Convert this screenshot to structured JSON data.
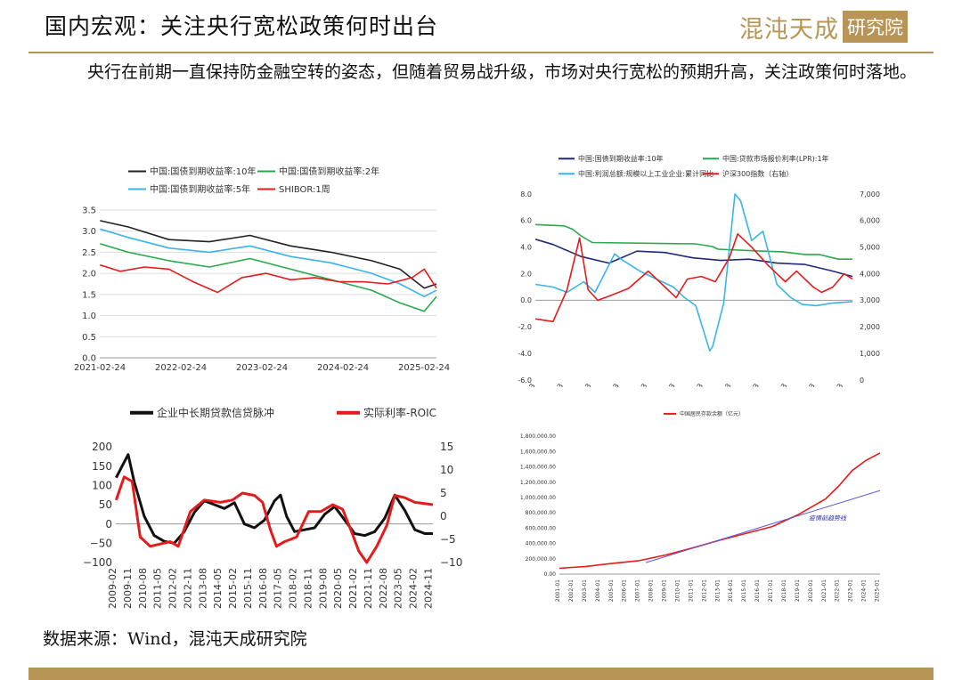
{
  "page": {
    "title": "国内宏观：关注央行宽松政策何时出台",
    "logo_text": "混沌天成",
    "logo_box_text": "研究院",
    "paragraph": "央行在前期一直保持防金融空转的姿态，但随着贸易战升级，市场对央行宽松的预期升高，关注政策何时落地。",
    "source": "数据来源：Wind，混沌天成研究院",
    "accent_color": "#b89456"
  },
  "chart_data": [
    {
      "type": "line",
      "x_ticks": [
        "2021-02-24",
        "2022-02-24",
        "2023-02-24",
        "2024-02-24",
        "2025-02-24"
      ],
      "ylim": [
        0.0,
        3.5
      ],
      "y_ticks": [
        "0.0",
        "0.5",
        "1.0",
        "1.5",
        "2.0",
        "2.5",
        "3.0",
        "3.5"
      ],
      "grid": true,
      "legend": "top",
      "series": [
        {
          "name": "中国:国债到期收益率:10年",
          "color": "#222222",
          "x": [
            2021.15,
            2021.5,
            2022.0,
            2022.5,
            2023.0,
            2023.5,
            2024.0,
            2024.5,
            2024.85,
            2025.15,
            2025.3
          ],
          "values": [
            3.25,
            3.1,
            2.8,
            2.75,
            2.9,
            2.65,
            2.5,
            2.3,
            2.1,
            1.65,
            1.75
          ]
        },
        {
          "name": "中国:国债到期收益率:2年",
          "color": "#2aa84a",
          "x": [
            2021.15,
            2021.5,
            2022.0,
            2022.5,
            2023.0,
            2023.5,
            2024.0,
            2024.5,
            2024.85,
            2025.15,
            2025.3
          ],
          "values": [
            2.7,
            2.5,
            2.3,
            2.15,
            2.35,
            2.1,
            1.85,
            1.6,
            1.3,
            1.1,
            1.45
          ]
        },
        {
          "name": "中国:国债到期收益率:5年",
          "color": "#39b4e6",
          "x": [
            2021.15,
            2021.5,
            2022.0,
            2022.5,
            2023.0,
            2023.5,
            2024.0,
            2024.5,
            2024.85,
            2025.15,
            2025.3
          ],
          "values": [
            3.05,
            2.85,
            2.6,
            2.5,
            2.65,
            2.4,
            2.25,
            2.0,
            1.75,
            1.45,
            1.6
          ]
        },
        {
          "name": "SHIBOR:1周",
          "color": "#e51b1b",
          "x": [
            2021.15,
            2021.4,
            2021.7,
            2022.0,
            2022.3,
            2022.6,
            2022.9,
            2023.2,
            2023.5,
            2023.8,
            2024.1,
            2024.4,
            2024.7,
            2025.0,
            2025.15,
            2025.3
          ],
          "values": [
            2.2,
            2.05,
            2.15,
            2.1,
            1.8,
            1.55,
            1.9,
            2.0,
            1.85,
            1.9,
            1.8,
            1.8,
            1.75,
            1.9,
            2.1,
            1.65
          ]
        }
      ]
    },
    {
      "type": "line",
      "x_ticks": [
        "2013-11-13",
        "2014-11-13",
        "2015-11-13",
        "2016-11-13",
        "2017-11-13",
        "2018-11-13",
        "2019-11-13",
        "2020-11-13",
        "2021-11-13",
        "2022-11-13",
        "2023-11-13",
        "2024-11-13"
      ],
      "ylim": [
        -6.0,
        8.0
      ],
      "y_ticks": [
        "-6.0",
        "-4.0",
        "-2.0",
        "0.0",
        "2.0",
        "4.0",
        "6.0",
        "8.0"
      ],
      "y2lim": [
        0,
        7000
      ],
      "y2_ticks": [
        "0",
        "1,000",
        "2,000",
        "3,000",
        "4,000",
        "5,000",
        "6,000",
        "7,000"
      ],
      "grid": false,
      "legend": "top",
      "series": [
        {
          "name": "中国:国债到期收益率:10年",
          "color": "#1f2a78",
          "axis": "left",
          "x": [
            2013.87,
            2014.5,
            2015.5,
            2016.5,
            2017.5,
            2018.5,
            2019.5,
            2020.5,
            2021.5,
            2022.5,
            2023.5,
            2024.5,
            2025.2
          ],
          "values": [
            4.6,
            4.2,
            3.3,
            2.8,
            3.7,
            3.6,
            3.2,
            3.0,
            3.1,
            2.8,
            2.7,
            2.2,
            1.8
          ]
        },
        {
          "name": "中国:贷款市场报价利率(LPR):1年",
          "color": "#2aa84a",
          "axis": "left",
          "x": [
            2013.87,
            2014.9,
            2015.2,
            2015.5,
            2015.9,
            2019.6,
            2020.2,
            2020.4,
            2022.0,
            2022.7,
            2023.5,
            2024.0,
            2024.7,
            2025.2
          ],
          "values": [
            5.7,
            5.6,
            5.35,
            4.85,
            4.35,
            4.25,
            4.05,
            3.85,
            3.7,
            3.65,
            3.45,
            3.45,
            3.1,
            3.1
          ]
        },
        {
          "name": "中国:利润总额:规模以上工业企业:累计同比",
          "color": "#39b4e6",
          "axis": "left",
          "x": [
            2013.87,
            2014.5,
            2015.0,
            2015.6,
            2016.0,
            2016.7,
            2017.0,
            2017.6,
            2018.0,
            2018.8,
            2019.2,
            2019.6,
            2020.1,
            2020.2,
            2020.6,
            2021.0,
            2021.2,
            2021.6,
            2022.0,
            2022.5,
            2023.0,
            2023.4,
            2023.9,
            2024.5,
            2025.2
          ],
          "values": [
            1.2,
            1.0,
            0.6,
            1.4,
            0.6,
            3.5,
            3.0,
            2.2,
            1.8,
            1.0,
            0.2,
            -0.4,
            -3.8,
            -3.5,
            -0.2,
            8.0,
            7.5,
            4.5,
            5.2,
            1.2,
            0.2,
            -0.3,
            -0.4,
            -0.2,
            -0.1
          ]
        },
        {
          "name": "沪深300指数（右轴）",
          "color": "#e51b1b",
          "axis": "right",
          "x": [
            2013.87,
            2014.5,
            2015.0,
            2015.45,
            2015.75,
            2016.1,
            2016.6,
            2017.2,
            2017.9,
            2018.4,
            2018.9,
            2019.3,
            2019.8,
            2020.3,
            2020.8,
            2021.1,
            2021.6,
            2022.2,
            2022.8,
            2023.2,
            2023.8,
            2024.1,
            2024.5,
            2024.9,
            2025.2
          ],
          "values": [
            2300,
            2200,
            3400,
            5350,
            3400,
            3000,
            3200,
            3450,
            4100,
            3600,
            3100,
            3800,
            3900,
            3700,
            4600,
            5500,
            5000,
            4300,
            3700,
            4100,
            3500,
            3300,
            3500,
            4000,
            3800
          ]
        }
      ]
    },
    {
      "type": "line",
      "x_ticks": [
        "2009-02",
        "2009-11",
        "2010-08",
        "2011-05",
        "2012-02",
        "2012-11",
        "2013-08",
        "2014-05",
        "2015-02",
        "2015-11",
        "2016-08",
        "2017-05",
        "2018-02",
        "2018-11",
        "2019-08",
        "2020-05",
        "2021-02",
        "2021-11",
        "2022-08",
        "2023-05",
        "2024-02",
        "2024-11"
      ],
      "ylim": [
        -100,
        200
      ],
      "y_ticks": [
        "−100",
        "−50",
        "0",
        "50",
        "100",
        "150",
        "200"
      ],
      "y2lim": [
        -10,
        15
      ],
      "y2_ticks": [
        "−10",
        "−5",
        "0",
        "5",
        "10",
        "15"
      ],
      "grid": false,
      "legend": "top",
      "series": [
        {
          "name": "企业中长期贷款信贷脉冲",
          "color": "#111111",
          "axis": "left",
          "x": [
            2009.1,
            2009.4,
            2009.7,
            2010.0,
            2010.5,
            2011.0,
            2011.5,
            2012.0,
            2012.5,
            2013.0,
            2013.5,
            2014.0,
            2014.5,
            2015.0,
            2015.5,
            2016.0,
            2016.5,
            2017.0,
            2017.3,
            2017.6,
            2018.0,
            2018.5,
            2019.0,
            2019.5,
            2020.0,
            2020.5,
            2021.0,
            2021.5,
            2022.0,
            2022.5,
            2023.0,
            2023.5,
            2024.0,
            2024.5,
            2024.9
          ],
          "values": [
            120,
            150,
            180,
            110,
            20,
            -30,
            -45,
            -50,
            -20,
            30,
            60,
            50,
            40,
            55,
            0,
            -10,
            10,
            60,
            75,
            20,
            -20,
            -15,
            -10,
            25,
            45,
            10,
            -25,
            -30,
            -20,
            15,
            75,
            35,
            -15,
            -25,
            -25
          ]
        },
        {
          "name": "实际利率-ROIC",
          "color": "#e51b1b",
          "axis": "right",
          "x": [
            2009.1,
            2009.5,
            2009.9,
            2010.3,
            2010.8,
            2011.3,
            2011.8,
            2012.2,
            2012.8,
            2013.5,
            2014.3,
            2014.9,
            2015.4,
            2016.0,
            2016.4,
            2016.8,
            2017.1,
            2017.5,
            2018.1,
            2018.7,
            2019.3,
            2019.9,
            2020.4,
            2020.9,
            2021.2,
            2021.6,
            2022.1,
            2022.6,
            2023.0,
            2023.5,
            2024.0,
            2024.9
          ],
          "values": [
            3.5,
            8.5,
            7.5,
            -4.5,
            -6.5,
            -6.0,
            -5.5,
            -6.5,
            1.0,
            3.5,
            3.0,
            3.5,
            5.0,
            4.5,
            3.0,
            -3.0,
            -6.5,
            -5.5,
            -4.5,
            1.0,
            1.0,
            2.5,
            1.5,
            -4.0,
            -7.5,
            -10.0,
            -6.5,
            -2.0,
            4.5,
            4.0,
            3.0,
            2.5
          ]
        }
      ]
    },
    {
      "type": "line",
      "x_ticks": [
        "2001-01",
        "2002-01",
        "2003-01",
        "2004-01",
        "2005-01",
        "2006-01",
        "2007-01",
        "2008-01",
        "2009-01",
        "2010-01",
        "2011-01",
        "2012-01",
        "2013-01",
        "2014-01",
        "2015-01",
        "2016-01",
        "2017-01",
        "2018-01",
        "2019-01",
        "2020-01",
        "2021-01",
        "2022-01",
        "2023-01",
        "2024-01",
        "2025-01"
      ],
      "ylim": [
        0,
        1800000
      ],
      "y_ticks": [
        "0.00",
        "200,000.00",
        "400,000.00",
        "600,000.00",
        "800,000.00",
        "1,000,000.00",
        "1,200,000.00",
        "1,400,000.00",
        "1,600,000.00",
        "1,800,000.00"
      ],
      "grid": false,
      "legend": "top",
      "annotation": "疫情前趋势线",
      "series": [
        {
          "name": "中国居民存款余额（亿元）",
          "color": "#e51b1b",
          "x": [
            2001.0,
            2003.0,
            2005.0,
            2007.0,
            2009.0,
            2011.0,
            2013.0,
            2015.0,
            2017.0,
            2019.0,
            2020.0,
            2021.0,
            2022.0,
            2023.0,
            2024.0,
            2025.1
          ],
          "values": [
            75000,
            100000,
            140000,
            175000,
            250000,
            340000,
            440000,
            530000,
            620000,
            780000,
            880000,
            980000,
            1150000,
            1350000,
            1480000,
            1580000
          ]
        },
        {
          "name": "",
          "color": "#5a5ad8",
          "x": [
            2007.5,
            2025.1
          ],
          "values": [
            150000,
            1090000
          ]
        }
      ]
    }
  ]
}
